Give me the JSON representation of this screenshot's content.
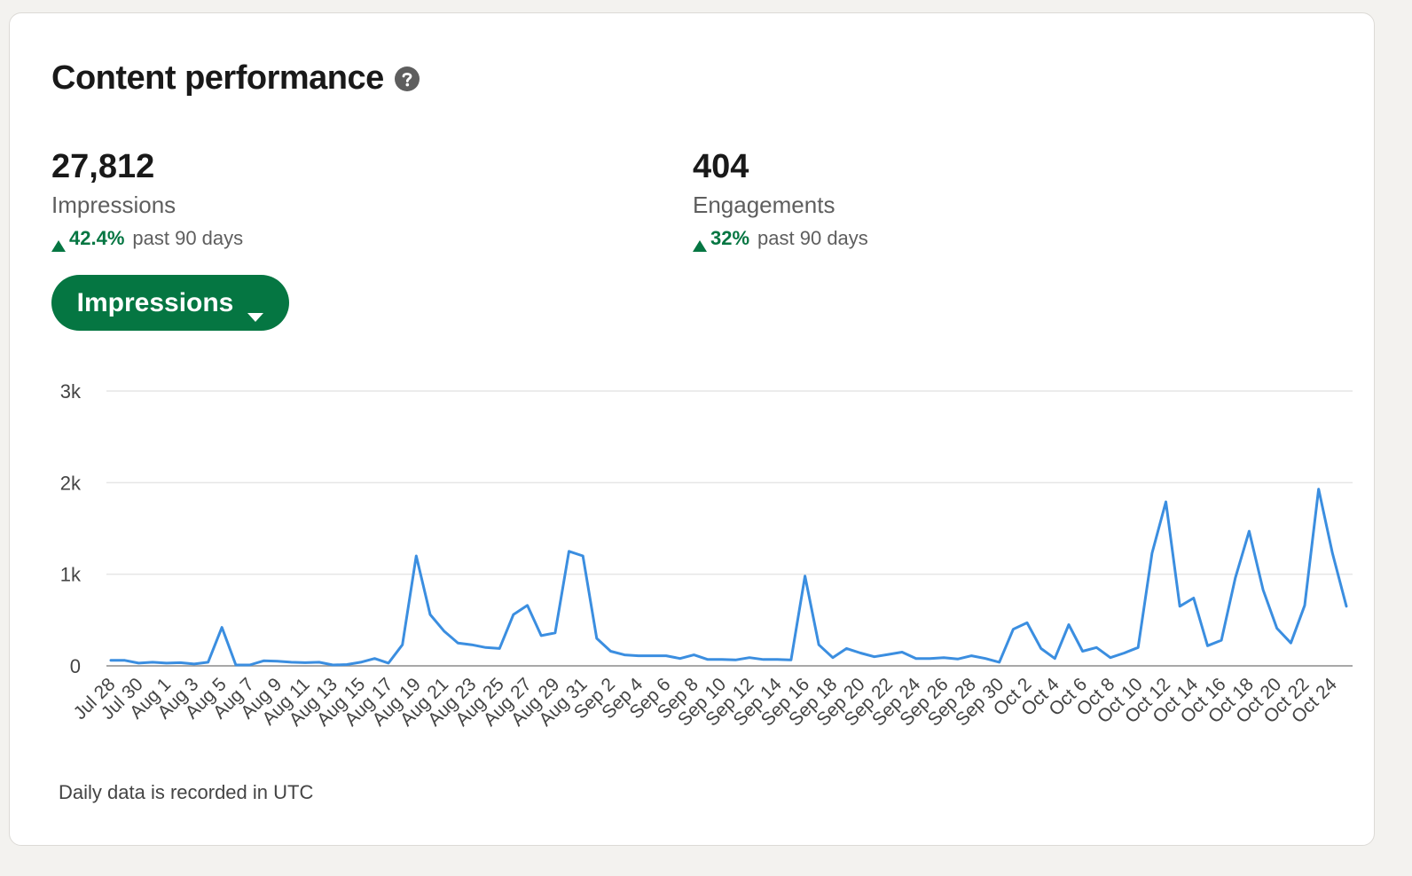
{
  "card": {
    "title": "Content performance",
    "help_icon": "question-circle-icon"
  },
  "metrics": [
    {
      "value": "27,812",
      "label": "Impressions",
      "change": "42.4%",
      "period": "past 90 days",
      "trend_icon": "triangle-up-icon"
    },
    {
      "value": "404",
      "label": "Engagements",
      "change": "32%",
      "period": "past 90 days",
      "trend_icon": "triangle-up-icon"
    }
  ],
  "metric_selector": {
    "label": "Impressions",
    "icon": "caret-down-icon"
  },
  "colors": {
    "accent_green": "#057642",
    "line_blue": "#3b8ee0",
    "grid": "#e6e6e6",
    "axis": "#8c8c8c"
  },
  "chart_data": {
    "type": "line",
    "title": "",
    "xlabel": "",
    "ylabel": "",
    "ylim": [
      0,
      3000
    ],
    "y_ticks": [
      0,
      1000,
      2000,
      3000
    ],
    "y_tick_labels": [
      "0",
      "1k",
      "2k",
      "3k"
    ],
    "grid": true,
    "x_tick_labels": [
      "Jul 28",
      "Jul 30",
      "Aug 1",
      "Aug 3",
      "Aug 5",
      "Aug 7",
      "Aug 9",
      "Aug 11",
      "Aug 13",
      "Aug 15",
      "Aug 17",
      "Aug 19",
      "Aug 21",
      "Aug 23",
      "Aug 25",
      "Aug 27",
      "Aug 29",
      "Aug 31",
      "Sep 2",
      "Sep 4",
      "Sep 6",
      "Sep 8",
      "Sep 10",
      "Sep 12",
      "Sep 14",
      "Sep 16",
      "Sep 18",
      "Sep 20",
      "Sep 22",
      "Sep 24",
      "Sep 26",
      "Sep 28",
      "Sep 30",
      "Oct 2",
      "Oct 4",
      "Oct 6",
      "Oct 8",
      "Oct 10",
      "Oct 12",
      "Oct 14",
      "Oct 16",
      "Oct 18",
      "Oct 20",
      "Oct 22",
      "Oct 24"
    ],
    "series": [
      {
        "values": [
          60,
          60,
          30,
          40,
          30,
          35,
          20,
          40,
          420,
          10,
          10,
          55,
          50,
          40,
          35,
          40,
          10,
          15,
          40,
          80,
          30,
          230,
          1200,
          560,
          380,
          250,
          230,
          200,
          190,
          560,
          660,
          330,
          360,
          1250,
          1200,
          300,
          160,
          120,
          110,
          110,
          110,
          80,
          120,
          70,
          70,
          65,
          90,
          70,
          70,
          65,
          980,
          230,
          90,
          190,
          140,
          100,
          125,
          150,
          80,
          80,
          90,
          75,
          110,
          80,
          40,
          400,
          470,
          190,
          80,
          450,
          160,
          200,
          90,
          140,
          200,
          1230,
          1790,
          650,
          740,
          220,
          280,
          960,
          1470,
          830,
          410,
          250,
          660,
          1930,
          1230,
          650
        ]
      }
    ]
  },
  "footnote": "Daily data is recorded in UTC"
}
